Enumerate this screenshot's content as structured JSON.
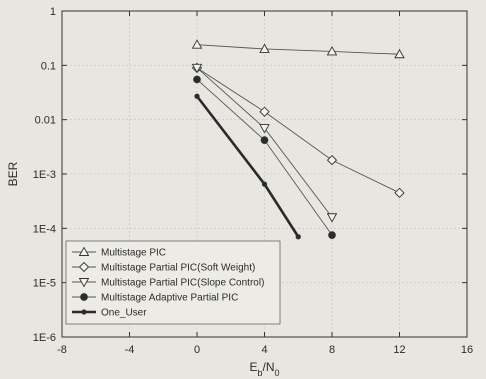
{
  "chart_data": {
    "type": "line",
    "title": "",
    "xlabel": {
      "main": "E",
      "sub1": "b",
      "mid": "/N",
      "sub2": "0"
    },
    "ylabel": "BER",
    "xlim": [
      -8,
      16
    ],
    "ylim": [
      1e-06,
      1
    ],
    "yscale": "log",
    "grid": true,
    "x_ticks": [
      -8,
      -4,
      0,
      4,
      8,
      12,
      16
    ],
    "x_tick_labels": [
      "-8",
      "-4",
      "0",
      "4",
      "8",
      "12",
      "16"
    ],
    "y_ticks": [
      1,
      0.1,
      0.01,
      0.001,
      0.0001,
      1e-05,
      1e-06
    ],
    "y_tick_labels": [
      "1",
      "0.1",
      "0.01",
      "1E-3",
      "1E-4",
      "1E-5",
      "1E-6"
    ],
    "legend_position": "bottom-left",
    "series": [
      {
        "name": "Multistage PIC",
        "marker": "triangle-up",
        "line": "thin",
        "x": [
          0,
          4,
          8,
          12
        ],
        "y": [
          0.24,
          0.2,
          0.18,
          0.16
        ]
      },
      {
        "name": "Multistage Partial PIC(Soft Weight)",
        "marker": "diamond",
        "line": "thin",
        "x": [
          0,
          4,
          8,
          12
        ],
        "y": [
          0.09,
          0.014,
          0.0018,
          0.00045
        ]
      },
      {
        "name": "Multistage Partial PIC(Slope Control)",
        "marker": "triangle-down",
        "line": "thin",
        "x": [
          0,
          4,
          8
        ],
        "y": [
          0.09,
          0.007,
          0.00016
        ]
      },
      {
        "name": "Multistage Adaptive Partial PIC",
        "marker": "circle-filled",
        "line": "thin",
        "x": [
          0,
          4,
          8
        ],
        "y": [
          0.055,
          0.0042,
          7.5e-05
        ]
      },
      {
        "name": "One_User",
        "marker": "circle-filled-small",
        "line": "thick",
        "x": [
          0,
          4,
          6
        ],
        "y": [
          0.027,
          0.00065,
          7e-05
        ]
      }
    ]
  }
}
